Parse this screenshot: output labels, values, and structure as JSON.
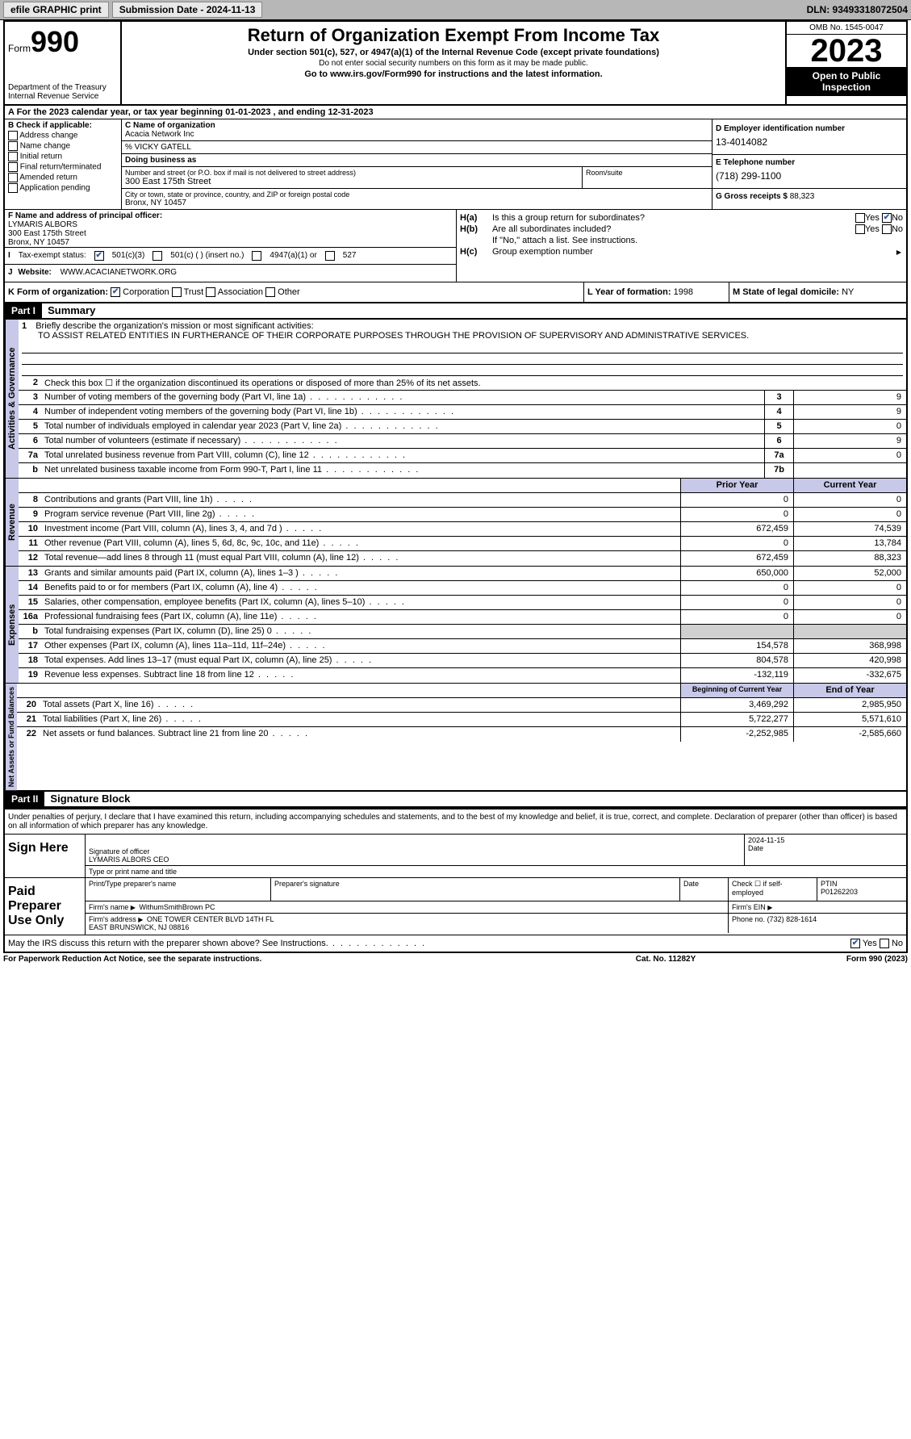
{
  "toolbar": {
    "efile": "efile GRAPHIC print",
    "submission_label": "Submission Date - 2024-11-13",
    "dln": "DLN: 93493318072504"
  },
  "header": {
    "form_label": "Form",
    "form_num": "990",
    "dept": "Department of the Treasury\nInternal Revenue Service",
    "title": "Return of Organization Exempt From Income Tax",
    "sub": "Under section 501(c), 527, or 4947(a)(1) of the Internal Revenue Code (except private foundations)",
    "warn": "Do not enter social security numbers on this form as it may be made public.",
    "goto": "Go to www.irs.gov/Form990 for instructions and the latest information.",
    "omb": "OMB No. 1545-0047",
    "year": "2023",
    "inspect": "Open to Public Inspection"
  },
  "row_a": "A For the 2023 calendar year, or tax year beginning 01-01-2023   , and ending 12-31-2023",
  "box_b": {
    "label": "B Check if applicable:",
    "opts": [
      "Address change",
      "Name change",
      "Initial return",
      "Final return/terminated",
      "Amended return",
      "Application pending"
    ]
  },
  "box_c": {
    "name_lbl": "C Name of organization",
    "name": "Acacia Network Inc",
    "care_of": "% VICKY GATELL",
    "dba_lbl": "Doing business as",
    "street_lbl": "Number and street (or P.O. box if mail is not delivered to street address)",
    "street": "300 East 175th Street",
    "room_lbl": "Room/suite",
    "city_lbl": "City or town, state or province, country, and ZIP or foreign postal code",
    "city": "Bronx, NY  10457"
  },
  "box_d": {
    "ein_lbl": "D Employer identification number",
    "ein": "13-4014082",
    "phone_lbl": "E Telephone number",
    "phone": "(718) 299-1100",
    "gross_lbl": "G Gross receipts $",
    "gross": "88,323"
  },
  "box_f": {
    "lbl": "F  Name and address of principal officer:",
    "name": "LYMARIS ALBORS",
    "street": "300 East 175th Street",
    "city": "Bronx, NY  10457"
  },
  "box_h": {
    "ha_lbl": "H(a)",
    "ha_txt": "Is this a group return for subordinates?",
    "hb_lbl": "H(b)",
    "hb_txt": "Are all subordinates included?",
    "hb_note": "If \"No,\" attach a list. See instructions.",
    "hc_lbl": "H(c)",
    "hc_txt": "Group exemption number",
    "yes": "Yes",
    "no": "No"
  },
  "row_i": {
    "lbl": "I",
    "txt": "Tax-exempt status:",
    "opts": [
      "501(c)(3)",
      "501(c) (  ) (insert no.)",
      "4947(a)(1) or",
      "527"
    ]
  },
  "row_j": {
    "lbl": "J",
    "txt": "Website:",
    "val": "WWW.ACACIANETWORK.ORG"
  },
  "row_k": {
    "lbl": "K Form of organization:",
    "opts": [
      "Corporation",
      "Trust",
      "Association",
      "Other"
    ],
    "l_lbl": "L Year of formation:",
    "l_val": "1998",
    "m_lbl": "M State of legal domicile:",
    "m_val": "NY"
  },
  "part1": {
    "hdr": "Part I",
    "title": "Summary"
  },
  "mission": {
    "num": "1",
    "lbl": "Briefly describe the organization's mission or most significant activities:",
    "txt": "TO ASSIST RELATED ENTITIES IN FURTHERANCE OF THEIR CORPORATE PURPOSES THROUGH THE PROVISION OF SUPERVISORY AND ADMINISTRATIVE SERVICES."
  },
  "gov_lines": [
    {
      "n": "2",
      "t": "Check this box ☐ if the organization discontinued its operations or disposed of more than 25% of its net assets.",
      "box": "",
      "v": ""
    },
    {
      "n": "3",
      "t": "Number of voting members of the governing body (Part VI, line 1a)",
      "box": "3",
      "v": "9"
    },
    {
      "n": "4",
      "t": "Number of independent voting members of the governing body (Part VI, line 1b)",
      "box": "4",
      "v": "9"
    },
    {
      "n": "5",
      "t": "Total number of individuals employed in calendar year 2023 (Part V, line 2a)",
      "box": "5",
      "v": "0"
    },
    {
      "n": "6",
      "t": "Total number of volunteers (estimate if necessary)",
      "box": "6",
      "v": "9"
    },
    {
      "n": "7a",
      "t": "Total unrelated business revenue from Part VIII, column (C), line 12",
      "box": "7a",
      "v": "0"
    },
    {
      "n": "b",
      "t": "Net unrelated business taxable income from Form 990-T, Part I, line 11",
      "box": "7b",
      "v": ""
    }
  ],
  "col_hdrs": {
    "prior": "Prior Year",
    "current": "Current Year",
    "boy": "Beginning of Current Year",
    "eoy": "End of Year"
  },
  "rev_lines": [
    {
      "n": "8",
      "t": "Contributions and grants (Part VIII, line 1h)",
      "p": "0",
      "c": "0"
    },
    {
      "n": "9",
      "t": "Program service revenue (Part VIII, line 2g)",
      "p": "0",
      "c": "0"
    },
    {
      "n": "10",
      "t": "Investment income (Part VIII, column (A), lines 3, 4, and 7d )",
      "p": "672,459",
      "c": "74,539"
    },
    {
      "n": "11",
      "t": "Other revenue (Part VIII, column (A), lines 5, 6d, 8c, 9c, 10c, and 11e)",
      "p": "0",
      "c": "13,784"
    },
    {
      "n": "12",
      "t": "Total revenue—add lines 8 through 11 (must equal Part VIII, column (A), line 12)",
      "p": "672,459",
      "c": "88,323"
    }
  ],
  "exp_lines": [
    {
      "n": "13",
      "t": "Grants and similar amounts paid (Part IX, column (A), lines 1–3 )",
      "p": "650,000",
      "c": "52,000"
    },
    {
      "n": "14",
      "t": "Benefits paid to or for members (Part IX, column (A), line 4)",
      "p": "0",
      "c": "0"
    },
    {
      "n": "15",
      "t": "Salaries, other compensation, employee benefits (Part IX, column (A), lines 5–10)",
      "p": "0",
      "c": "0"
    },
    {
      "n": "16a",
      "t": "Professional fundraising fees (Part IX, column (A), line 11e)",
      "p": "0",
      "c": "0"
    },
    {
      "n": "b",
      "t": "Total fundraising expenses (Part IX, column (D), line 25) 0",
      "p": "shaded",
      "c": "shaded"
    },
    {
      "n": "17",
      "t": "Other expenses (Part IX, column (A), lines 11a–11d, 11f–24e)",
      "p": "154,578",
      "c": "368,998"
    },
    {
      "n": "18",
      "t": "Total expenses. Add lines 13–17 (must equal Part IX, column (A), line 25)",
      "p": "804,578",
      "c": "420,998"
    },
    {
      "n": "19",
      "t": "Revenue less expenses. Subtract line 18 from line 12",
      "p": "-132,119",
      "c": "-332,675"
    }
  ],
  "net_lines": [
    {
      "n": "20",
      "t": "Total assets (Part X, line 16)",
      "p": "3,469,292",
      "c": "2,985,950"
    },
    {
      "n": "21",
      "t": "Total liabilities (Part X, line 26)",
      "p": "5,722,277",
      "c": "5,571,610"
    },
    {
      "n": "22",
      "t": "Net assets or fund balances. Subtract line 21 from line 20",
      "p": "-2,252,985",
      "c": "-2,585,660"
    }
  ],
  "side_labels": {
    "gov": "Activities & Governance",
    "rev": "Revenue",
    "exp": "Expenses",
    "net": "Net Assets or Fund Balances"
  },
  "part2": {
    "hdr": "Part II",
    "title": "Signature Block"
  },
  "sig": {
    "intro": "Under penalties of perjury, I declare that I have examined this return, including accompanying schedules and statements, and to the best of my knowledge and belief, it is true, correct, and complete. Declaration of preparer (other than officer) is based on all information of which preparer has any knowledge.",
    "sign_here": "Sign Here",
    "sig_officer_lbl": "Signature of officer",
    "officer": "LYMARIS ALBORS CEO",
    "officer_type_lbl": "Type or print name and title",
    "date_lbl": "Date",
    "date": "2024-11-15",
    "paid": "Paid Preparer Use Only",
    "prep_name_lbl": "Print/Type preparer's name",
    "prep_sig_lbl": "Preparer's signature",
    "check_self": "Check ☐ if self-employed",
    "ptin_lbl": "PTIN",
    "ptin": "P01262203",
    "firm_name_lbl": "Firm's name",
    "firm_name": "WithumSmithBrown PC",
    "firm_ein_lbl": "Firm's EIN",
    "firm_addr_lbl": "Firm's address",
    "firm_addr": "ONE TOWER CENTER BLVD 14TH FL\nEAST BRUNSWICK, NJ  08816",
    "firm_phone_lbl": "Phone no.",
    "firm_phone": "(732) 828-1614",
    "discuss": "May the IRS discuss this return with the preparer shown above? See Instructions."
  },
  "footer": {
    "l": "For Paperwork Reduction Act Notice, see the separate instructions.",
    "m": "Cat. No. 11282Y",
    "r": "Form 990 (2023)"
  }
}
